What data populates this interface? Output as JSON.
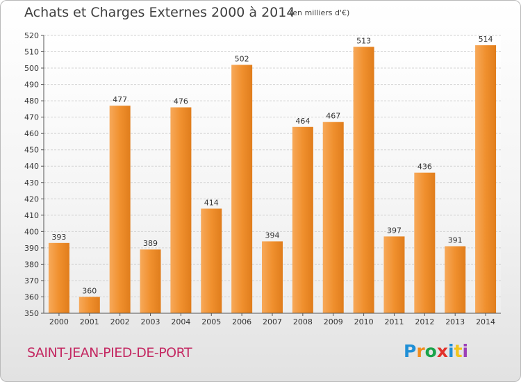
{
  "header": {
    "title": "Achats et Charges Externes 2000 à 2014",
    "subtitle": "(en milliers d'€)"
  },
  "footer": {
    "commune": "SAINT-JEAN-PIED-DE-PORT",
    "brand": "Proxiti",
    "brand_colors": [
      "#1f8fd6",
      "#f28c1d",
      "#1aa34a",
      "#e2322b",
      "#1f8fd6",
      "#f2c41d",
      "#9c3fb8"
    ]
  },
  "colors": {
    "bar": "#f0902e",
    "bar_light": "#f7a95a",
    "grid": "#d2d2d2",
    "axis": "#555555"
  },
  "chart_data": {
    "type": "bar",
    "title": "Achats et Charges Externes 2000 à 2014",
    "subtitle": "(en milliers d'€)",
    "xlabel": "",
    "ylabel": "",
    "categories": [
      "2000",
      "2001",
      "2002",
      "2003",
      "2004",
      "2005",
      "2006",
      "2007",
      "2008",
      "2009",
      "2010",
      "2011",
      "2012",
      "2013",
      "2014"
    ],
    "values": [
      393,
      360,
      477,
      389,
      476,
      414,
      502,
      394,
      464,
      467,
      513,
      397,
      436,
      391,
      514
    ],
    "ylim": [
      350,
      520
    ],
    "yticks": [
      350,
      360,
      370,
      380,
      390,
      400,
      410,
      420,
      430,
      440,
      450,
      460,
      470,
      480,
      490,
      500,
      510,
      520
    ],
    "grid": true,
    "legend": "none"
  }
}
